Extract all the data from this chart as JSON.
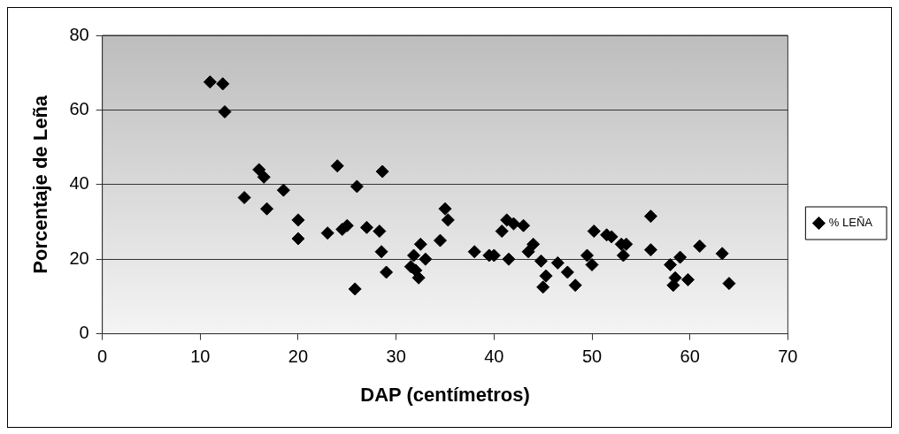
{
  "chart_data": {
    "type": "scatter",
    "xlabel": "DAP (centímetros)",
    "ylabel": "Porcentaje de Leña",
    "xlim": [
      0,
      70
    ],
    "xticks": [
      0,
      10,
      20,
      30,
      40,
      50,
      60,
      70
    ],
    "ylim": [
      0,
      80
    ],
    "yticks": [
      0,
      20,
      40,
      60,
      80
    ],
    "grid": "y",
    "legend": "right",
    "marker": "diamond",
    "series": [
      {
        "name": "% LEÑA",
        "color": "#000000",
        "x": [
          11,
          12.3,
          12.5,
          14.5,
          16,
          16.5,
          16.8,
          18.5,
          20,
          20,
          23,
          24,
          24.5,
          25,
          25.8,
          26,
          27,
          28.3,
          28.5,
          28.6,
          29,
          31.5,
          31.8,
          32,
          32.3,
          32.5,
          33,
          34.5,
          35,
          35.3,
          38,
          39.5,
          40,
          40.8,
          41.3,
          41.5,
          42,
          43,
          43.5,
          44,
          44.8,
          45,
          45.3,
          46.5,
          47.5,
          48.3,
          49.5,
          50,
          50.2,
          51.5,
          52,
          53,
          53.2,
          53.5,
          56,
          56,
          58,
          58.3,
          58.5,
          59,
          59.8,
          61,
          63.3,
          64
        ],
        "values": [
          67.5,
          67,
          59.5,
          36.5,
          44,
          42,
          33.5,
          38.5,
          30.5,
          25.5,
          27,
          45,
          28,
          29,
          12,
          39.5,
          28.5,
          27.5,
          22,
          43.5,
          16.5,
          18,
          21,
          17,
          15,
          24,
          20,
          25,
          33.5,
          30.5,
          22,
          21,
          21,
          27.5,
          30.5,
          20,
          29.5,
          29,
          22,
          24,
          19.5,
          12.5,
          15.5,
          19,
          16.5,
          13,
          21,
          18.5,
          27.5,
          26.5,
          26,
          24,
          21,
          24,
          31.5,
          22.5,
          18.5,
          13,
          15,
          20.5,
          14.5,
          23.5,
          21.5,
          13.5
        ]
      }
    ]
  }
}
